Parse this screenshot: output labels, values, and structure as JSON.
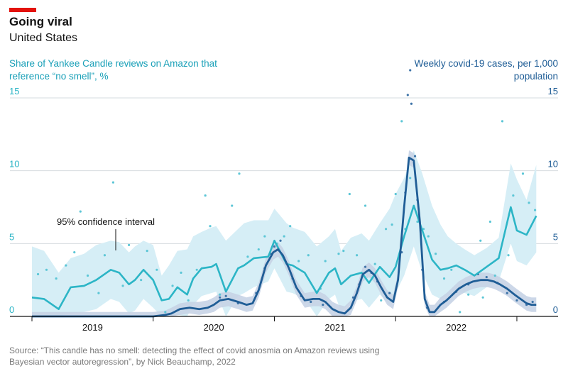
{
  "header": {
    "title": "Going viral",
    "subtitle": "United States"
  },
  "axes": {
    "left_label": "Share of Yankee Candle reviews on Amazon that reference “no smell”, %",
    "right_label": "Weekly covid-19 cases, per 1,000 population"
  },
  "annotation": "95% confidence interval",
  "source": "Source: “This candle has no smell: detecting the effect of covid anosmia on Amazon reviews using Bayesian vector autoregression”, by Nick Beauchamp, 2022",
  "colors": {
    "reviews": "#2cb5c6",
    "reviews_band": "#d6eef6",
    "covid": "#1f5d96",
    "covid_band": "#c6d3e6",
    "accent": "#e3120b"
  },
  "chart_data": {
    "type": "line",
    "title": "Going viral",
    "subtitle": "United States",
    "ylim": [
      0,
      15
    ],
    "xlim": [
      2018.5,
      2022.67
    ],
    "yticks": [
      0,
      5,
      10,
      15
    ],
    "year_ticks": [
      2018.5,
      2019.5,
      2020.5,
      2021.5,
      2022.5
    ],
    "xtick_labels": [
      {
        "label": "2019",
        "x": 2019.0
      },
      {
        "label": "2020",
        "x": 2020.0
      },
      {
        "label": "2021",
        "x": 2021.0
      },
      {
        "label": "2022",
        "x": 2022.0
      }
    ],
    "series": [
      {
        "name": "Share of Yankee Candle reviews on Amazon that reference “no smell”, %",
        "axis": "left",
        "x": [
          2018.5,
          2018.6,
          2018.72,
          2018.82,
          2018.93,
          2019.03,
          2019.15,
          2019.22,
          2019.3,
          2019.35,
          2019.42,
          2019.5,
          2019.57,
          2019.63,
          2019.7,
          2019.78,
          2019.83,
          2019.9,
          2019.98,
          2020.02,
          2020.1,
          2020.2,
          2020.25,
          2020.33,
          2020.45,
          2020.5,
          2020.6,
          2020.65,
          2020.75,
          2020.85,
          2020.95,
          2021.0,
          2021.05,
          2021.13,
          2021.22,
          2021.28,
          2021.37,
          2021.45,
          2021.5,
          2021.57,
          2021.65,
          2021.72,
          2021.8,
          2021.87,
          2021.93,
          2022.0,
          2022.07,
          2022.15,
          2022.25,
          2022.35,
          2022.45,
          2022.5,
          2022.58,
          2022.66
        ],
        "y": [
          1.3,
          1.2,
          0.5,
          2.0,
          2.1,
          2.5,
          3.2,
          3.0,
          2.2,
          2.5,
          3.2,
          2.5,
          1.1,
          1.2,
          2.0,
          1.5,
          2.6,
          3.3,
          3.4,
          3.6,
          1.7,
          3.3,
          3.5,
          4.0,
          4.1,
          5.2,
          3.6,
          3.5,
          3.0,
          1.6,
          3.0,
          3.3,
          2.2,
          2.8,
          3.0,
          2.3,
          3.4,
          2.7,
          3.4,
          5.5,
          7.6,
          5.9,
          3.9,
          3.2,
          3.3,
          3.5,
          3.2,
          2.8,
          3.4,
          4.0,
          7.5,
          5.9,
          5.6,
          6.9
        ],
        "band_upper": [
          4.8,
          4.5,
          3.0,
          4.0,
          4.3,
          4.9,
          5.2,
          5.1,
          4.4,
          4.8,
          5.2,
          4.9,
          2.8,
          3.5,
          4.5,
          4.6,
          5.5,
          5.8,
          6.1,
          6.2,
          5.2,
          6.0,
          6.4,
          6.6,
          6.6,
          7.4,
          6.4,
          6.1,
          5.8,
          4.8,
          5.5,
          6.0,
          4.5,
          5.4,
          5.7,
          5.2,
          6.4,
          7.4,
          8.4,
          9.5,
          11.4,
          9.8,
          7.6,
          6.3,
          5.5,
          5.0,
          4.6,
          4.2,
          4.7,
          5.4,
          10.5,
          9.4,
          8.0,
          10.4
        ],
        "band_lower": [
          0.0,
          0.0,
          0.0,
          0.2,
          0.3,
          0.5,
          1.2,
          1.0,
          0.2,
          0.4,
          1.2,
          0.6,
          0.0,
          0.0,
          0.1,
          0.0,
          0.8,
          1.4,
          1.6,
          1.7,
          0.0,
          1.4,
          1.6,
          2.0,
          2.4,
          3.3,
          1.7,
          1.6,
          1.2,
          0.0,
          1.2,
          1.5,
          0.3,
          1.0,
          1.2,
          0.6,
          1.5,
          0.8,
          1.6,
          2.8,
          4.8,
          3.0,
          1.5,
          1.2,
          1.4,
          1.7,
          1.6,
          1.4,
          2.0,
          2.4,
          5.0,
          3.8,
          3.5,
          4.4
        ],
        "observed": [
          [
            2018.55,
            2.9
          ],
          [
            2018.62,
            3.2
          ],
          [
            2018.7,
            2.6
          ],
          [
            2018.78,
            3.5
          ],
          [
            2018.85,
            4.4
          ],
          [
            2018.9,
            7.2
          ],
          [
            2018.96,
            2.8
          ],
          [
            2019.05,
            1.6
          ],
          [
            2019.1,
            4.2
          ],
          [
            2019.17,
            9.2
          ],
          [
            2019.25,
            2.1
          ],
          [
            2019.3,
            4.9
          ],
          [
            2019.4,
            2.5
          ],
          [
            2019.45,
            4.5
          ],
          [
            2019.53,
            3.2
          ],
          [
            2019.6,
            0.3
          ],
          [
            2019.66,
            2.1
          ],
          [
            2019.73,
            3.0
          ],
          [
            2019.79,
            1.1
          ],
          [
            2019.86,
            3.2
          ],
          [
            2019.93,
            8.3
          ],
          [
            2019.97,
            6.2
          ],
          [
            2020.05,
            1.5
          ],
          [
            2020.15,
            7.6
          ],
          [
            2020.21,
            9.8
          ],
          [
            2020.28,
            4.1
          ],
          [
            2020.37,
            4.6
          ],
          [
            2020.42,
            5.5
          ],
          [
            2020.52,
            5.0
          ],
          [
            2020.58,
            5.5
          ],
          [
            2020.63,
            6.2
          ],
          [
            2020.7,
            3.8
          ],
          [
            2020.78,
            4.2
          ],
          [
            2020.88,
            1.9
          ],
          [
            2020.92,
            3.8
          ],
          [
            2021.03,
            4.3
          ],
          [
            2021.07,
            4.5
          ],
          [
            2021.12,
            8.4
          ],
          [
            2021.18,
            4.2
          ],
          [
            2021.25,
            7.6
          ],
          [
            2021.33,
            3.6
          ],
          [
            2021.38,
            1.1
          ],
          [
            2021.42,
            6.0
          ],
          [
            2021.47,
            6.3
          ],
          [
            2021.5,
            8.4
          ],
          [
            2021.55,
            13.4
          ],
          [
            2021.58,
            6.0
          ],
          [
            2021.62,
            9.5
          ],
          [
            2021.68,
            6.5
          ],
          [
            2021.73,
            6.0
          ],
          [
            2021.77,
            5.5
          ],
          [
            2021.83,
            4.3
          ],
          [
            2021.9,
            2.6
          ],
          [
            2021.96,
            3.2
          ],
          [
            2022.03,
            0.3
          ],
          [
            2022.1,
            1.5
          ],
          [
            2022.2,
            5.2
          ],
          [
            2022.28,
            6.5
          ],
          [
            2022.38,
            13.4
          ],
          [
            2022.43,
            4.2
          ],
          [
            2022.47,
            8.3
          ],
          [
            2022.55,
            9.8
          ],
          [
            2022.6,
            7.8
          ],
          [
            2022.65,
            7.3
          ],
          [
            2022.22,
            1.3
          ],
          [
            2022.32,
            2.8
          ]
        ]
      },
      {
        "name": "Weekly covid-19 cases, per 1,000 population",
        "axis": "right",
        "x": [
          2018.5,
          2019.0,
          2019.5,
          2019.6,
          2019.65,
          2019.72,
          2019.8,
          2019.88,
          2019.95,
          2020.0,
          2020.05,
          2020.12,
          2020.2,
          2020.27,
          2020.32,
          2020.37,
          2020.43,
          2020.49,
          2020.53,
          2020.57,
          2020.62,
          2020.68,
          2020.75,
          2020.82,
          2020.87,
          2020.92,
          2020.98,
          2021.03,
          2021.08,
          2021.13,
          2021.18,
          2021.23,
          2021.28,
          2021.33,
          2021.38,
          2021.43,
          2021.48,
          2021.52,
          2021.57,
          2021.61,
          2021.65,
          2021.7,
          2021.74,
          2021.78,
          2021.82,
          2021.87,
          2021.92,
          2021.97,
          2022.02,
          2022.08,
          2022.14,
          2022.2,
          2022.26,
          2022.31,
          2022.36,
          2022.42,
          2022.48,
          2022.53,
          2022.58,
          2022.62,
          2022.66
        ],
        "y": [
          0,
          0,
          0,
          0.1,
          0.2,
          0.5,
          0.6,
          0.5,
          0.6,
          0.8,
          1.1,
          1.2,
          1.0,
          0.8,
          0.9,
          1.8,
          3.5,
          4.4,
          4.6,
          4.2,
          3.3,
          2.0,
          1.1,
          1.2,
          1.2,
          1.0,
          0.5,
          0.3,
          0.2,
          0.6,
          1.6,
          2.9,
          3.2,
          2.8,
          2.0,
          1.3,
          1.0,
          2.5,
          7.5,
          10.9,
          10.7,
          6.5,
          1.2,
          0.3,
          0.3,
          0.8,
          1.1,
          1.5,
          1.9,
          2.2,
          2.4,
          2.5,
          2.5,
          2.4,
          2.2,
          1.9,
          1.5,
          1.2,
          0.9,
          0.8,
          0.8
        ],
        "band_upper": [
          0.3,
          0.3,
          0.3,
          0.4,
          0.6,
          0.9,
          1.0,
          1.0,
          1.1,
          1.3,
          1.6,
          1.7,
          1.5,
          1.3,
          1.4,
          2.3,
          4.0,
          4.9,
          5.1,
          4.7,
          3.8,
          2.5,
          1.6,
          1.7,
          1.7,
          1.5,
          1.0,
          0.8,
          0.7,
          1.1,
          2.1,
          3.4,
          3.7,
          3.3,
          2.5,
          1.8,
          1.5,
          3.0,
          8.0,
          11.4,
          11.2,
          7.0,
          1.7,
          0.8,
          0.8,
          1.3,
          1.6,
          2.0,
          2.4,
          2.7,
          2.9,
          3.0,
          3.0,
          2.9,
          2.7,
          2.4,
          2.0,
          1.7,
          1.4,
          1.3,
          1.3
        ],
        "band_lower": [
          0,
          0,
          0,
          0,
          0,
          0.1,
          0.2,
          0.1,
          0.2,
          0.3,
          0.6,
          0.7,
          0.5,
          0.3,
          0.4,
          1.3,
          3.0,
          3.9,
          4.1,
          3.7,
          2.8,
          1.5,
          0.6,
          0.7,
          0.7,
          0.5,
          0.0,
          0.0,
          0.0,
          0.1,
          1.1,
          2.4,
          2.7,
          2.3,
          1.5,
          0.8,
          0.5,
          2.0,
          7.0,
          10.4,
          10.2,
          6.0,
          0.7,
          0.0,
          0.0,
          0.3,
          0.6,
          1.0,
          1.4,
          1.7,
          1.9,
          2.0,
          2.0,
          1.9,
          1.7,
          1.4,
          1.0,
          0.7,
          0.4,
          0.3,
          0.3
        ],
        "observed": [
          [
            2020.05,
            1.3
          ],
          [
            2020.1,
            1.4
          ],
          [
            2020.2,
            0.9
          ],
          [
            2020.35,
            1.6
          ],
          [
            2020.42,
            3.3
          ],
          [
            2020.47,
            4.3
          ],
          [
            2020.5,
            4.8
          ],
          [
            2020.55,
            5.2
          ],
          [
            2020.58,
            4.0
          ],
          [
            2020.65,
            2.6
          ],
          [
            2020.72,
            1.4
          ],
          [
            2020.8,
            1.0
          ],
          [
            2020.9,
            0.8
          ],
          [
            2021.15,
            1.3
          ],
          [
            2021.2,
            2.2
          ],
          [
            2021.25,
            3.4
          ],
          [
            2021.3,
            3.0
          ],
          [
            2021.35,
            2.4
          ],
          [
            2021.45,
            1.6
          ],
          [
            2021.55,
            4.4
          ],
          [
            2021.58,
            8.5
          ],
          [
            2021.6,
            15.2
          ],
          [
            2021.62,
            16.9
          ],
          [
            2021.63,
            14.6
          ],
          [
            2021.66,
            11.0
          ],
          [
            2021.68,
            8.0
          ],
          [
            2021.72,
            3.2
          ],
          [
            2021.76,
            0.6
          ],
          [
            2021.9,
            1.0
          ],
          [
            2022.0,
            1.7
          ],
          [
            2022.1,
            2.2
          ],
          [
            2022.18,
            2.9
          ],
          [
            2022.25,
            2.7
          ],
          [
            2022.34,
            2.3
          ],
          [
            2022.42,
            1.6
          ],
          [
            2022.5,
            1.1
          ],
          [
            2022.58,
            0.8
          ],
          [
            2022.63,
            1.0
          ]
        ]
      }
    ]
  }
}
